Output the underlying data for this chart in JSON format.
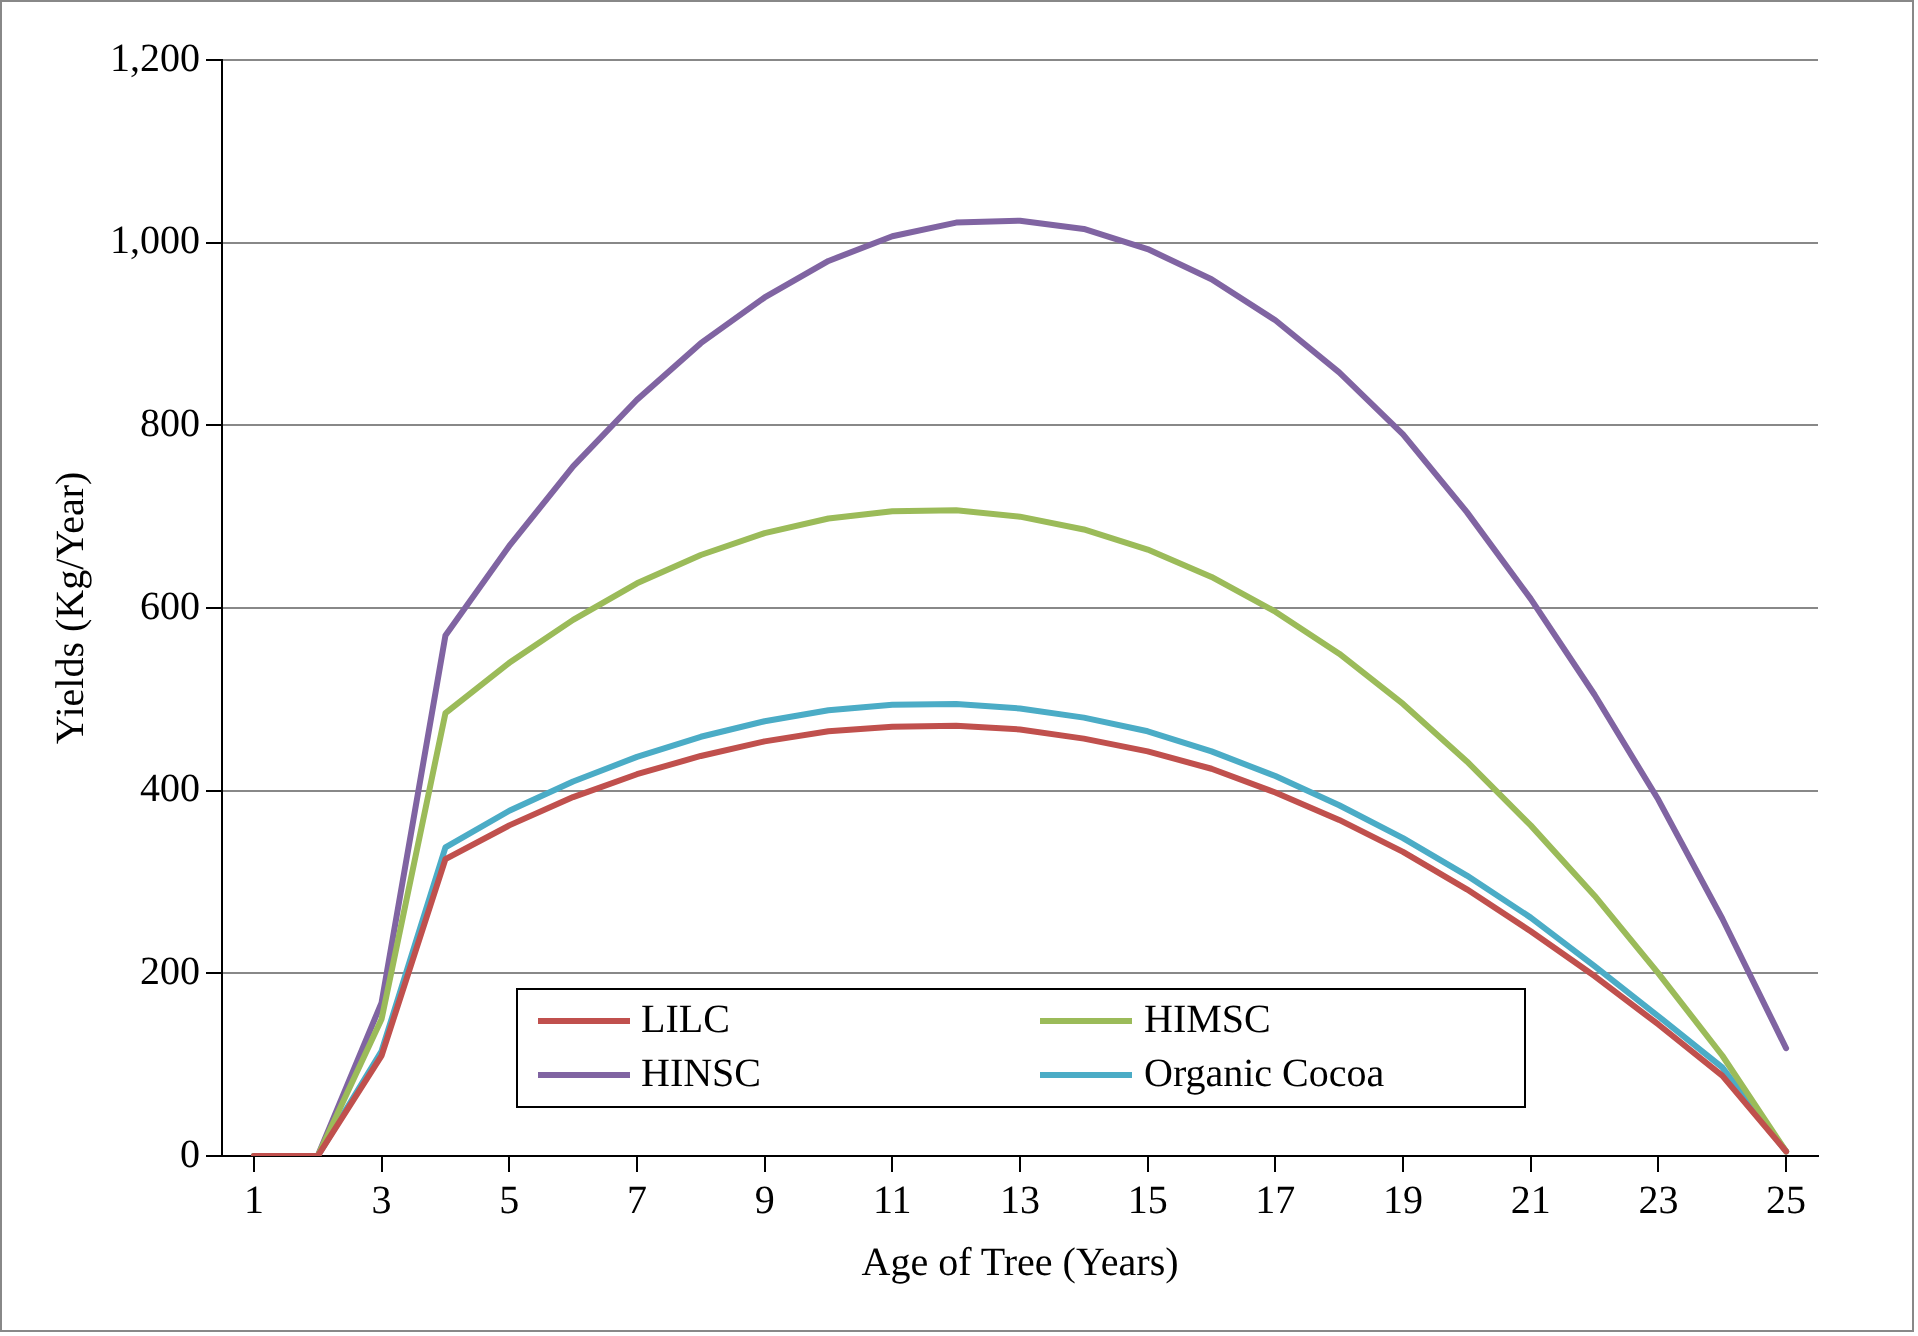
{
  "chart_data": {
    "type": "line",
    "xlabel": "Age of Tree (Years)",
    "ylabel": "Yields (Kg/Year)",
    "x": [
      1,
      2,
      3,
      4,
      5,
      6,
      7,
      8,
      9,
      10,
      11,
      12,
      13,
      14,
      15,
      16,
      17,
      18,
      19,
      20,
      21,
      22,
      23,
      24,
      25
    ],
    "xlim": [
      0.5,
      25.5
    ],
    "xticks": [
      1,
      3,
      5,
      7,
      9,
      11,
      13,
      15,
      17,
      19,
      21,
      23,
      25
    ],
    "series": [
      {
        "name": "LILC",
        "color": "#c0504d",
        "values": [
          0,
          0,
          110,
          325,
          362,
          393,
          418,
          438,
          454,
          465,
          470,
          471,
          467,
          457,
          443,
          424,
          398,
          368,
          333,
          292,
          246,
          197,
          144,
          88,
          5
        ]
      },
      {
        "name": "HIMSC",
        "color": "#9bbb59",
        "values": [
          0,
          0,
          150,
          485,
          540,
          587,
          627,
          658,
          682,
          698,
          706,
          707,
          700,
          686,
          664,
          634,
          596,
          550,
          495,
          432,
          362,
          285,
          200,
          110,
          5
        ]
      },
      {
        "name": "HINSC",
        "color": "#8064a2",
        "values": [
          0,
          0,
          168,
          570,
          668,
          755,
          828,
          890,
          940,
          980,
          1007,
          1022,
          1024,
          1015,
          993,
          960,
          915,
          858,
          790,
          705,
          610,
          505,
          390,
          260,
          118
        ]
      },
      {
        "name": "Organic Cocoa",
        "color": "#4bacc6",
        "values": [
          0,
          0,
          115,
          338,
          378,
          410,
          437,
          459,
          476,
          488,
          494,
          495,
          490,
          480,
          465,
          443,
          416,
          384,
          348,
          307,
          261,
          208,
          153,
          97,
          5
        ]
      }
    ],
    "ylim": [
      0,
      1200
    ],
    "yticks": [
      0,
      200,
      400,
      600,
      800,
      {
        "value": 1000,
        "label": "1,000"
      },
      {
        "value": 1200,
        "label": "1,200"
      }
    ],
    "grid": "y",
    "legend": "bottom",
    "marker": "none",
    "line_style": "solid"
  }
}
